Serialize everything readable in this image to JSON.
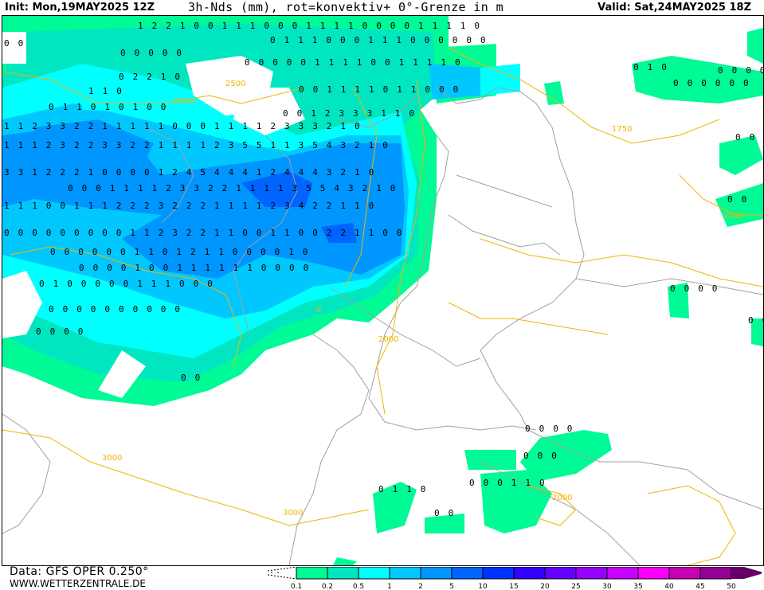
{
  "header": {
    "init": "Init: Mon,19MAY2025 12Z",
    "title": "3h-Nds (mm), rot=konvektiv+ 0°-Grenze in m",
    "valid": "Valid: Sat,24MAY2025 18Z"
  },
  "footer": {
    "data_source": "Data: GFS OPER 0.250°",
    "website": "WWW.WETTERZENTRALE.DE"
  },
  "legend": {
    "ticks": [
      "0.1",
      "0.2",
      "0.5",
      "1",
      "2",
      "5",
      "10",
      "15",
      "20",
      "25",
      "30",
      "35",
      "40",
      "45",
      "50"
    ],
    "colors": [
      "#00fa96",
      "#00e6c0",
      "#00ffff",
      "#00c8ff",
      "#0096ff",
      "#0064ff",
      "#0032ff",
      "#3200ff",
      "#6400ff",
      "#9600ff",
      "#c800ff",
      "#fa00fa",
      "#c800b4",
      "#960096",
      "#640064"
    ]
  },
  "map": {
    "colors": {
      "border": "#a0a0a0",
      "freezing_level_contour": "#f0b400"
    },
    "contour_labels": [
      "2500",
      "2500",
      "1750",
      "2000",
      "2000",
      "3000",
      "3000",
      "2500",
      "0"
    ],
    "grid_values": [
      "1 2 2 1 0 0 1 1 1 0 0 0 1 1 1 1 0 0 0 0 1 1 1 1 0",
      "0 0",
      "0 1 1 1 0 0 0 1 1 1 0 0 0 0 0 0",
      "0 0 0 0 0",
      "0 0 0 0 0 1 1 1 1 0 0 1 1 1 1 0",
      "0 1 0",
      "0 2 2 1 0",
      "0 0 0 0 0 0",
      "1 1 0",
      "0 0 1 1 1 1 0 1 1 0 0 0",
      "0 1 1 0 1 0 1 0 0",
      "0 0 1 2 3 3 3 1 1 0",
      "1 1 2 3 3 2 2 1 1 1 1 1 0 0 0 1 1 1 1 2 3 3 3 2 1 0",
      "1 1 1 2 3 2 2 3 3 2 2 1 1 1 1 2 3 5 5 1 1 3 5 4 3 2 1 0",
      "3 3 1 2 2 2 1 0 0 0 0 1 2 4 5 4 4 4 1 2 4 4 4 3 2 1 0",
      "0 0 0 1 1 1 1 2 3 3 2 2 1 1 1 1 3 5 5 4 3 2 1 0",
      "1 1 1 0 0 1 1 1 2 2 2 3 2 2 2 1 1 1 1 2 3 4 2 2 1 1 0",
      "0 0 0 0 0 0 0 0 0 1 1 2 3 2 2 1 1 0 0 1 1 0 0 2 2 1 1 0 0",
      "0 0 0 0 0 0 1 1 0 1 2 1 1 0 0 0 0 1 0",
      "0 0 0 0 1 0 0 1 1 1 1 1 1 0 0 0 0",
      "0 1 0 0 0 0 0 1 1 1 0 0 0",
      "0 0 0 0 0 0 0 0 0 0",
      "0 0 0 0",
      "0 0",
      "0 1 1 0",
      "0 0 0 0",
      "0 0 0",
      "0 0 0 1 1 0",
      "0 0",
      "0 0 0 0",
      "0 0",
      "0 0 0 0 0 0",
      "0 0",
      "0 0"
    ]
  }
}
